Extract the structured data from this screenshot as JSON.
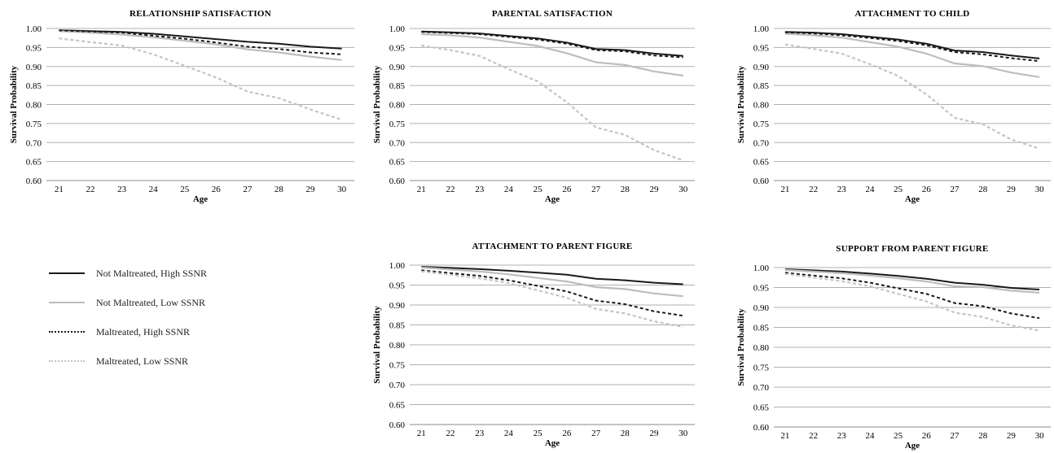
{
  "chart_data": [
    {
      "type": "line",
      "title": "RELATIONSHIP SATISFACTION",
      "xlabel": "Age",
      "ylabel": "Survival Probability",
      "x": [
        21,
        22,
        23,
        24,
        25,
        26,
        27,
        28,
        29,
        30
      ],
      "ylim": [
        0.6,
        1.0
      ],
      "yticks": [
        "0.60",
        "0.65",
        "0.70",
        "0.75",
        "0.80",
        "0.85",
        "0.90",
        "0.95",
        "1.00"
      ],
      "grid": true,
      "series": [
        {
          "name": "Not Maltreated, High SSNR",
          "values": [
            0.995,
            0.993,
            0.991,
            0.986,
            0.979,
            0.972,
            0.965,
            0.96,
            0.952,
            0.947
          ]
        },
        {
          "name": "Not Maltreated, Low SSNR",
          "values": [
            0.993,
            0.989,
            0.984,
            0.977,
            0.968,
            0.958,
            0.945,
            0.937,
            0.926,
            0.917
          ]
        },
        {
          "name": "Maltreated, High SSNR",
          "values": [
            0.995,
            0.992,
            0.989,
            0.981,
            0.973,
            0.963,
            0.952,
            0.946,
            0.937,
            0.932
          ]
        },
        {
          "name": "Maltreated, Low SSNR",
          "values": [
            0.974,
            0.964,
            0.955,
            0.932,
            0.902,
            0.871,
            0.834,
            0.817,
            0.787,
            0.76
          ]
        }
      ]
    },
    {
      "type": "line",
      "title": "PARENTAL SATISFACTION",
      "xlabel": "Age",
      "ylabel": "Survival Probability",
      "x": [
        21,
        22,
        23,
        24,
        25,
        26,
        27,
        28,
        29,
        30
      ],
      "ylim": [
        0.6,
        1.0
      ],
      "yticks": [
        "0.60",
        "0.65",
        "0.70",
        "0.75",
        "0.80",
        "0.85",
        "0.90",
        "0.95",
        "1.00"
      ],
      "grid": true,
      "series": [
        {
          "name": "Not Maltreated, High SSNR",
          "values": [
            0.992,
            0.99,
            0.987,
            0.98,
            0.974,
            0.963,
            0.946,
            0.943,
            0.934,
            0.928
          ]
        },
        {
          "name": "Not Maltreated, Low SSNR",
          "values": [
            0.985,
            0.982,
            0.976,
            0.965,
            0.954,
            0.935,
            0.911,
            0.904,
            0.887,
            0.876
          ]
        },
        {
          "name": "Maltreated, High SSNR",
          "values": [
            0.991,
            0.988,
            0.985,
            0.978,
            0.971,
            0.96,
            0.943,
            0.94,
            0.929,
            0.924
          ]
        },
        {
          "name": "Maltreated, Low SSNR",
          "values": [
            0.955,
            0.943,
            0.928,
            0.893,
            0.861,
            0.806,
            0.74,
            0.72,
            0.68,
            0.653
          ]
        }
      ]
    },
    {
      "type": "line",
      "title": "ATTACHMENT TO CHILD",
      "xlabel": "Age",
      "ylabel": "Survival Probability",
      "x": [
        21,
        22,
        23,
        24,
        25,
        26,
        27,
        28,
        29,
        30
      ],
      "ylim": [
        0.6,
        1.0
      ],
      "yticks": [
        "0.60",
        "0.65",
        "0.70",
        "0.75",
        "0.80",
        "0.85",
        "0.90",
        "0.95",
        "1.00"
      ],
      "grid": true,
      "series": [
        {
          "name": "Not Maltreated, High SSNR",
          "values": [
            0.991,
            0.989,
            0.985,
            0.978,
            0.971,
            0.96,
            0.942,
            0.938,
            0.929,
            0.921
          ]
        },
        {
          "name": "Not Maltreated, Low SSNR",
          "values": [
            0.986,
            0.982,
            0.976,
            0.964,
            0.952,
            0.934,
            0.908,
            0.901,
            0.884,
            0.872
          ]
        },
        {
          "name": "Maltreated, High SSNR",
          "values": [
            0.99,
            0.987,
            0.982,
            0.975,
            0.967,
            0.956,
            0.938,
            0.932,
            0.922,
            0.914
          ]
        },
        {
          "name": "Maltreated, Low SSNR",
          "values": [
            0.958,
            0.946,
            0.934,
            0.906,
            0.875,
            0.827,
            0.765,
            0.748,
            0.708,
            0.684
          ]
        }
      ]
    },
    {
      "type": "line",
      "title": "ATTACHMENT TO PARENT FIGURE",
      "xlabel": "Age",
      "ylabel": "Survival Probability",
      "x": [
        21,
        22,
        23,
        24,
        25,
        26,
        27,
        28,
        29,
        30
      ],
      "ylim": [
        0.6,
        1.0
      ],
      "yticks": [
        "0.60",
        "0.65",
        "0.70",
        "0.75",
        "0.80",
        "0.85",
        "0.90",
        "0.95",
        "1.00"
      ],
      "grid": true,
      "series": [
        {
          "name": "Not Maltreated, High SSNR",
          "values": [
            0.996,
            0.993,
            0.99,
            0.986,
            0.981,
            0.976,
            0.966,
            0.962,
            0.956,
            0.952
          ]
        },
        {
          "name": "Not Maltreated, Low SSNR",
          "values": [
            0.994,
            0.989,
            0.984,
            0.977,
            0.968,
            0.959,
            0.945,
            0.94,
            0.929,
            0.922
          ]
        },
        {
          "name": "Maltreated, High SSNR",
          "values": [
            0.987,
            0.98,
            0.973,
            0.962,
            0.948,
            0.934,
            0.911,
            0.902,
            0.884,
            0.873
          ]
        },
        {
          "name": "Maltreated, Low SSNR",
          "values": [
            0.984,
            0.976,
            0.967,
            0.955,
            0.937,
            0.918,
            0.89,
            0.879,
            0.859,
            0.845
          ]
        }
      ]
    },
    {
      "type": "line",
      "title": "SUPPORT FROM PARENT FIGURE",
      "xlabel": "Age",
      "ylabel": "Survival Probability",
      "x": [
        21,
        22,
        23,
        24,
        25,
        26,
        27,
        28,
        29,
        30
      ],
      "ylim": [
        0.6,
        1.0
      ],
      "yticks": [
        "0.60",
        "0.65",
        "0.70",
        "0.75",
        "0.80",
        "0.85",
        "0.90",
        "0.95",
        "1.00"
      ],
      "grid": true,
      "series": [
        {
          "name": "Not Maltreated, High SSNR",
          "values": [
            0.996,
            0.993,
            0.99,
            0.985,
            0.979,
            0.972,
            0.962,
            0.957,
            0.949,
            0.945
          ]
        },
        {
          "name": "Not Maltreated, Low SSNR",
          "values": [
            0.994,
            0.99,
            0.986,
            0.98,
            0.973,
            0.965,
            0.953,
            0.951,
            0.942,
            0.937
          ]
        },
        {
          "name": "Maltreated, High SSNR",
          "values": [
            0.987,
            0.98,
            0.973,
            0.962,
            0.948,
            0.934,
            0.911,
            0.903,
            0.885,
            0.873
          ]
        },
        {
          "name": "Maltreated, Low SSNR",
          "values": [
            0.984,
            0.975,
            0.966,
            0.953,
            0.934,
            0.915,
            0.887,
            0.876,
            0.855,
            0.842
          ]
        }
      ]
    }
  ],
  "legend": {
    "items": [
      {
        "label": "Not Maltreated, High SSNR",
        "color": "#1a1a1a",
        "dash": "solid"
      },
      {
        "label": "Not Maltreated, Low SSNR",
        "color": "#bdbdbd",
        "dash": "solid"
      },
      {
        "label": "Maltreated, High SSNR",
        "color": "#1a1a1a",
        "dash": "dotted"
      },
      {
        "label": "Maltreated, Low SSNR",
        "color": "#c4c4c4",
        "dash": "dotted"
      }
    ]
  },
  "styles": {
    "series_colors": [
      "#1a1a1a",
      "#bdbdbd",
      "#1a1a1a",
      "#c4c4c4"
    ],
    "series_dash": [
      "",
      "",
      "4,3",
      "4,3"
    ],
    "grid_color": "#b0b0b0"
  }
}
